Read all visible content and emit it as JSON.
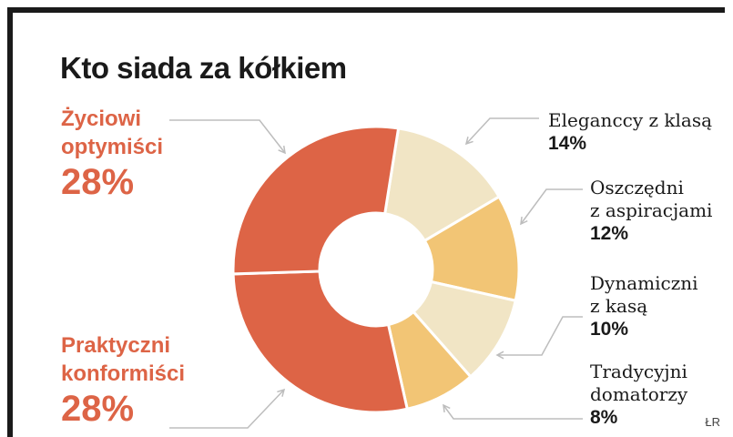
{
  "chart_data": {
    "type": "pie",
    "style": "donut",
    "title": "Kto siada za kółkiem",
    "categories": [
      "Eleganccy z klasą",
      "Oszczędni z aspiracjami",
      "Dynamiczni z kasą",
      "Tradycyjni domatorzy",
      "Praktyczni konformiści",
      "Życiowi optymiści"
    ],
    "values": [
      14,
      12,
      10,
      8,
      28,
      28
    ],
    "value_labels": [
      "14%",
      "12%",
      "10%",
      "8%",
      "28%",
      "28%"
    ],
    "name_lines": [
      [
        "Eleganccy z klasą"
      ],
      [
        "Oszczędni",
        "z aspiracjami"
      ],
      [
        "Dynamiczni",
        "z kasą"
      ],
      [
        "Tradycyjni",
        "domatorzy"
      ],
      [
        "Praktyczni",
        "konformiści"
      ],
      [
        "Życiowi",
        "optymiści"
      ]
    ],
    "colors": [
      "#f1e5c5",
      "#f2c575",
      "#f1e5c5",
      "#f2c575",
      "#dd6446",
      "#dd6446"
    ],
    "legend": "none"
  },
  "credit": "ŁR"
}
